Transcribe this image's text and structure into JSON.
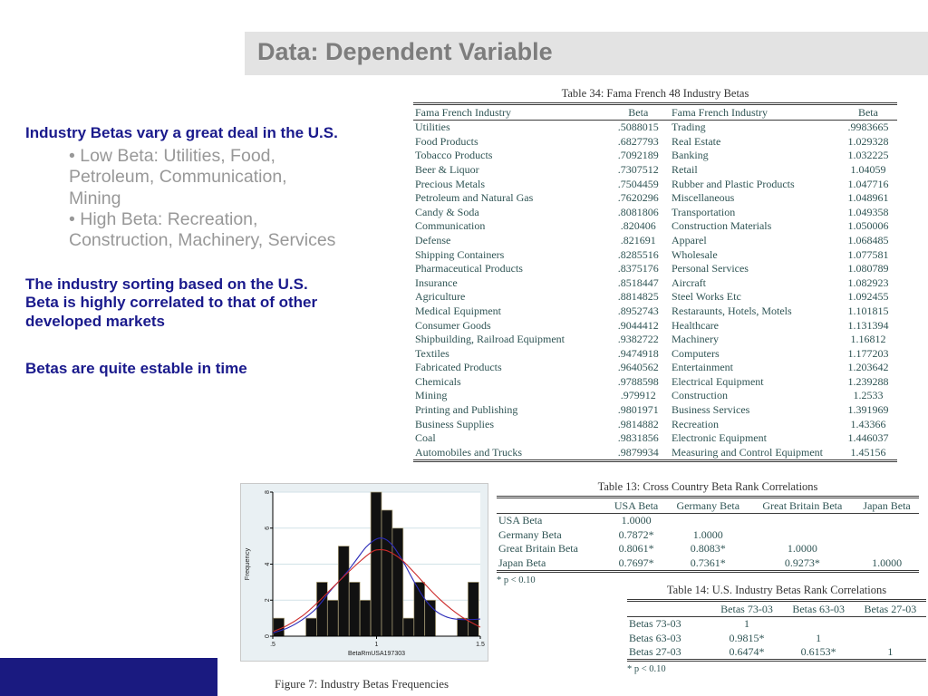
{
  "header": {
    "title": "Data: Dependent Variable"
  },
  "notes": {
    "heading": "Industry Betas vary a great deal in the U.S.",
    "bullet_low": "• Low Beta: Utilities, Food,\nPetroleum, Communication,\nMining",
    "bullet_high": "• High Beta: Recreation,\nConstruction, Machinery, Services",
    "para_sorting": "The industry sorting based on the U.S.\nBeta is highly correlated to that of other\ndeveloped markets",
    "para_stable": "Betas are quite estable in time"
  },
  "table34": {
    "title": "Table 34: Fama French 48 Industry Betas",
    "headers": [
      "Fama French Industry",
      "Beta",
      "Fama French Industry",
      "Beta"
    ],
    "rows": [
      [
        "Utilities",
        ".5088015",
        "Trading",
        ".9983665"
      ],
      [
        "Food Products",
        ".6827793",
        "Real Estate",
        "1.029328"
      ],
      [
        "Tobacco Products",
        ".7092189",
        "Banking",
        "1.032225"
      ],
      [
        "Beer & Liquor",
        ".7307512",
        "Retail",
        "1.04059"
      ],
      [
        "Precious Metals",
        ".7504459",
        "Rubber and Plastic Products",
        "1.047716"
      ],
      [
        "Petroleum and Natural Gas",
        ".7620296",
        "Miscellaneous",
        "1.048961"
      ],
      [
        "Candy & Soda",
        ".8081806",
        "Transportation",
        "1.049358"
      ],
      [
        "Communication",
        ".820406",
        "Construction Materials",
        "1.050006"
      ],
      [
        "Defense",
        ".821691",
        "Apparel",
        "1.068485"
      ],
      [
        "Shipping Containers",
        ".8285516",
        "Wholesale",
        "1.077581"
      ],
      [
        "Pharmaceutical Products",
        ".8375176",
        "Personal Services",
        "1.080789"
      ],
      [
        "Insurance",
        ".8518447",
        "Aircraft",
        "1.082923"
      ],
      [
        "Agriculture",
        ".8814825",
        "Steel Works Etc",
        "1.092455"
      ],
      [
        "Medical Equipment",
        ".8952743",
        "Restaraunts, Hotels, Motels",
        "1.101815"
      ],
      [
        "Consumer Goods",
        ".9044412",
        "Healthcare",
        "1.131394"
      ],
      [
        "Shipbuilding, Railroad Equipment",
        ".9382722",
        "Machinery",
        "1.16812"
      ],
      [
        "Textiles",
        ".9474918",
        "Computers",
        "1.177203"
      ],
      [
        "Fabricated Products",
        ".9640562",
        "Entertainment",
        "1.203642"
      ],
      [
        "Chemicals",
        ".9788598",
        "Electrical Equipment",
        "1.239288"
      ],
      [
        "Mining",
        ".979912",
        "Construction",
        "1.2533"
      ],
      [
        "Printing and Publishing",
        ".9801971",
        "Business Services",
        "1.391969"
      ],
      [
        "Business Supplies",
        ".9814882",
        "Recreation",
        "1.43366"
      ],
      [
        "Coal",
        ".9831856",
        "Electronic Equipment",
        "1.446037"
      ],
      [
        "Automobiles and Trucks",
        ".9879934",
        "Measuring and Control Equipment",
        "1.45156"
      ]
    ]
  },
  "table13": {
    "title": "Table 13: Cross Country Beta Rank Correlations",
    "headers": [
      "",
      "USA Beta",
      "Germany Beta",
      "Great Britain Beta",
      "Japan Beta"
    ],
    "rows": [
      [
        "USA Beta",
        "1.0000",
        "",
        "",
        ""
      ],
      [
        "Germany Beta",
        "0.7872*",
        "1.0000",
        "",
        ""
      ],
      [
        "Great Britain Beta",
        "0.8061*",
        "0.8083*",
        "1.0000",
        ""
      ],
      [
        "Japan Beta",
        "0.7697*",
        "0.7361*",
        "0.9273*",
        "1.0000"
      ]
    ],
    "footnote": "* p < 0.10"
  },
  "table14": {
    "title": "Table 14: U.S. Industry Betas Rank Correlations",
    "headers": [
      "",
      "Betas 73-03",
      "Betas 63-03",
      "Betas 27-03"
    ],
    "rows": [
      [
        "Betas 73-03",
        "1",
        "",
        ""
      ],
      [
        "Betas 63-03",
        "0.9815*",
        "1",
        ""
      ],
      [
        "Betas 27-03",
        "0.6474*",
        "0.6153*",
        "1"
      ]
    ],
    "footnote": "* p < 0.10"
  },
  "figure": {
    "caption": "Figure 7: Industry Betas Frequencies"
  },
  "chart_data": {
    "type": "bar",
    "title": "Figure 7: Industry Betas Frequencies",
    "xlabel": "BetaRmUSA197303",
    "ylabel": "Frequency",
    "xlim": [
      0.5,
      1.5
    ],
    "ylim": [
      0,
      8
    ],
    "x_ticks": [
      0.5,
      1,
      1.5
    ],
    "x_tick_labels": [
      ".5",
      "1",
      "1.5"
    ],
    "y_ticks": [
      0,
      2,
      4,
      6,
      8
    ],
    "grid": true,
    "bin_start": 0.503,
    "bin_width": 0.0521,
    "bin_heights": [
      1,
      0,
      0,
      1,
      3,
      2,
      5,
      3,
      2,
      8,
      7,
      6,
      1,
      3,
      2,
      0,
      0,
      1,
      3
    ],
    "series": [
      {
        "name": "kernel density",
        "color": "#2a2ab8",
        "points": [
          [
            0.5,
            0.18
          ],
          [
            0.57,
            0.45
          ],
          [
            0.64,
            0.9
          ],
          [
            0.71,
            1.55
          ],
          [
            0.78,
            2.55
          ],
          [
            0.85,
            3.45
          ],
          [
            0.9,
            4.2
          ],
          [
            0.95,
            4.95
          ],
          [
            1.0,
            5.4
          ],
          [
            1.04,
            5.4
          ],
          [
            1.08,
            5.0
          ],
          [
            1.13,
            4.1
          ],
          [
            1.18,
            3.05
          ],
          [
            1.23,
            2.1
          ],
          [
            1.28,
            1.45
          ],
          [
            1.33,
            1.1
          ],
          [
            1.38,
            0.95
          ],
          [
            1.44,
            0.92
          ],
          [
            1.5,
            0.95
          ]
        ]
      },
      {
        "name": "normal density",
        "color": "#cc2a2a",
        "points": [
          [
            0.5,
            0.25
          ],
          [
            0.57,
            0.6
          ],
          [
            0.64,
            1.1
          ],
          [
            0.71,
            1.8
          ],
          [
            0.78,
            2.6
          ],
          [
            0.85,
            3.4
          ],
          [
            0.92,
            4.15
          ],
          [
            0.98,
            4.7
          ],
          [
            1.02,
            4.8
          ],
          [
            1.06,
            4.7
          ],
          [
            1.12,
            4.25
          ],
          [
            1.18,
            3.55
          ],
          [
            1.24,
            2.8
          ],
          [
            1.3,
            2.1
          ],
          [
            1.36,
            1.5
          ],
          [
            1.42,
            1.0
          ],
          [
            1.5,
            0.5
          ]
        ]
      }
    ],
    "colors": {
      "bar_fill": "#111111",
      "bar_edge": "#b3a77f",
      "background": "#e9f0f3",
      "plot_bg": "#ffffff",
      "grid": "#d2e2e7",
      "axis": "#000000",
      "tick_text": "#222222"
    }
  }
}
